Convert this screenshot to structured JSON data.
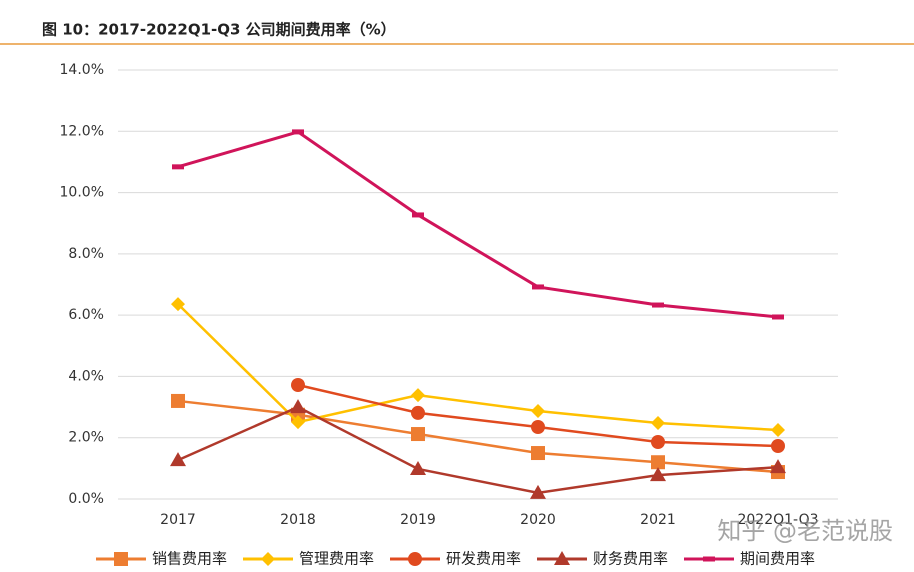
{
  "chart_data": {
    "type": "line",
    "title": "图 10：2017-2022Q1-Q3 公司期间费用率（%）",
    "categories": [
      "2017",
      "2018",
      "2019",
      "2020",
      "2021",
      "2022Q1-Q3"
    ],
    "series": [
      {
        "name": "销售费用率",
        "color": "#ED7D31",
        "marker": "square",
        "values": [
          3.2,
          2.75,
          2.12,
          1.5,
          1.2,
          0.88
        ]
      },
      {
        "name": "管理费用率",
        "color": "#FFC000",
        "marker": "diamond",
        "values": [
          6.36,
          2.51,
          3.39,
          2.87,
          2.48,
          2.25
        ]
      },
      {
        "name": "研发费用率",
        "color": "#E04A1F",
        "marker": "circle",
        "values": [
          null,
          3.72,
          2.81,
          2.35,
          1.86,
          1.73
        ]
      },
      {
        "name": "财务费用率",
        "color": "#B0392B",
        "marker": "triangle",
        "values": [
          1.27,
          3.0,
          0.98,
          0.2,
          0.78,
          1.04
        ]
      },
      {
        "name": "期间费用率",
        "color": "#D0145A",
        "marker": "dash",
        "values": [
          10.84,
          11.98,
          9.27,
          6.92,
          6.33,
          5.94
        ]
      }
    ],
    "ylim": [
      0,
      14
    ],
    "yticks": [
      {
        "value": 0,
        "label": "0.0%"
      },
      {
        "value": 2,
        "label": "2.0%"
      },
      {
        "value": 4,
        "label": "4.0%"
      },
      {
        "value": 6,
        "label": "6.0%"
      },
      {
        "value": 8,
        "label": "8.0%"
      },
      {
        "value": 10,
        "label": "10.0%"
      },
      {
        "value": 12,
        "label": "12.0%"
      },
      {
        "value": 14,
        "label": "14.0%"
      }
    ],
    "grid": true,
    "legend": "bottom",
    "watermark": "知乎 @老范说股"
  }
}
